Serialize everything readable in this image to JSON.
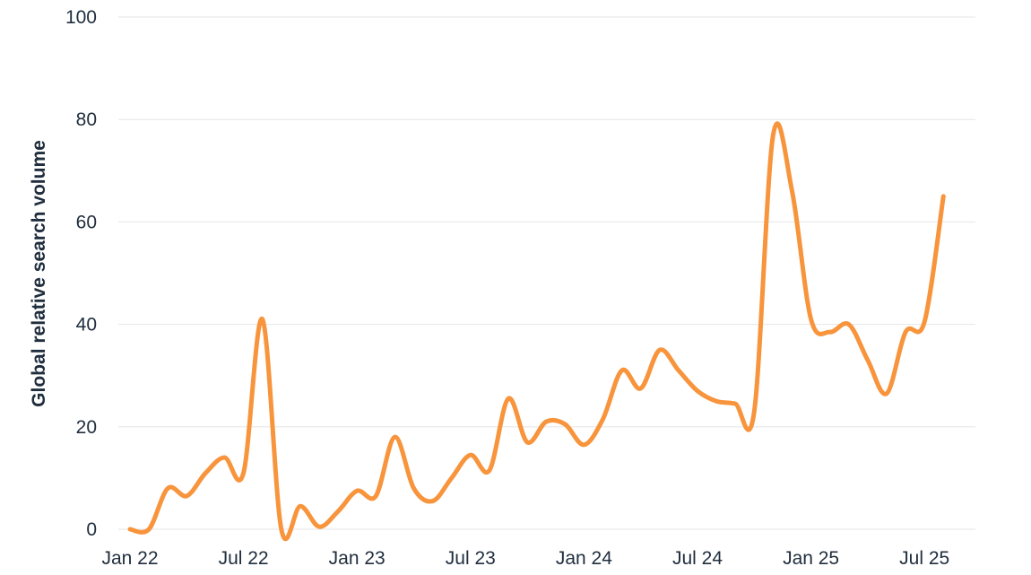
{
  "chart_data": {
    "type": "line",
    "title": "",
    "xlabel": "",
    "ylabel": "Global relative search volume",
    "ylim": [
      0,
      100
    ],
    "yticks": [
      0,
      20,
      40,
      60,
      80,
      100
    ],
    "xtick_labels": [
      "Jan 22",
      "Jul 22",
      "Jan 23",
      "Jul 23",
      "Jan 24",
      "Jul 24",
      "Jan 25",
      "Jul 25"
    ],
    "grid": true,
    "legend": "none",
    "colors": {
      "line": "#f7943c",
      "grid": "#e6e6e6",
      "text": "#1f2d3d"
    },
    "series": [
      {
        "values": [
          0,
          0,
          8,
          6.5,
          11,
          14,
          11,
          41,
          0,
          4.5,
          0.5,
          3.5,
          7.5,
          6.5,
          18,
          8,
          5.5,
          10,
          14.5,
          11.5,
          25.5,
          17,
          21,
          20.5,
          16.5,
          21.5,
          31,
          27.5,
          35,
          31,
          27,
          25,
          24.5,
          23,
          77,
          66,
          41,
          38.5,
          40,
          33,
          26.5,
          38.5,
          40.5,
          65
        ]
      }
    ]
  }
}
